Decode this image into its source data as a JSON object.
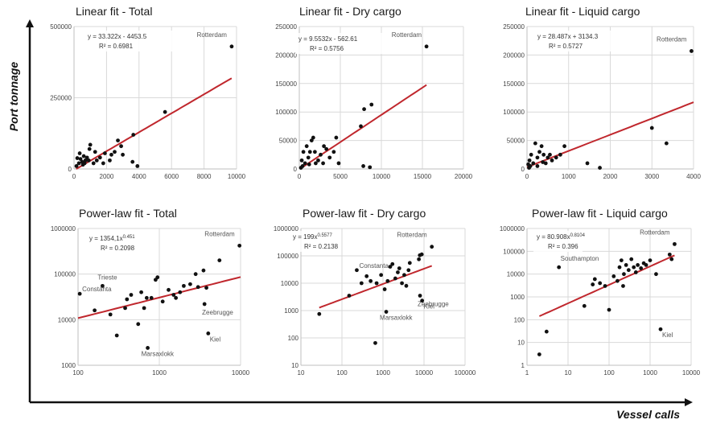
{
  "global": {
    "y_axis_title": "Port tonnage",
    "x_axis_title": "Vessel calls",
    "colors": {
      "trendline": "#c0272d",
      "points": "#111111",
      "grid": "#d9d9d9",
      "axis_arrow": "#111111"
    }
  },
  "chart_data": [
    {
      "type": "scatter",
      "title": "Linear fit - Total",
      "scale": "linear",
      "xlim": [
        0,
        10000
      ],
      "ylim": [
        0,
        500000
      ],
      "xticks": [
        0,
        2000,
        4000,
        6000,
        8000,
        10000
      ],
      "yticks": [
        0,
        250000,
        500000
      ],
      "xtick_labels": [
        "0",
        "2000",
        "4000",
        "6000",
        "8000",
        "10000"
      ],
      "ytick_labels": [
        "0",
        "250000",
        "500000"
      ],
      "equation": "y = 33.322x - 4453.5",
      "r_squared": "R² = 0.6981",
      "trendline": {
        "kind": "linear",
        "a": 33.322,
        "b": -4453.5,
        "x_range": [
          0,
          9700
        ]
      },
      "points": [
        {
          "x": 9700,
          "y": 430000,
          "label": "Rotterdam"
        },
        {
          "x": 5600,
          "y": 200000
        },
        {
          "x": 3650,
          "y": 120000
        },
        {
          "x": 3900,
          "y": 10000
        },
        {
          "x": 3600,
          "y": 25000
        },
        {
          "x": 2700,
          "y": 100000
        },
        {
          "x": 2900,
          "y": 80000
        },
        {
          "x": 3000,
          "y": 50000
        },
        {
          "x": 2500,
          "y": 60000
        },
        {
          "x": 2200,
          "y": 30000
        },
        {
          "x": 1900,
          "y": 55000
        },
        {
          "x": 1600,
          "y": 40000
        },
        {
          "x": 1400,
          "y": 30000
        },
        {
          "x": 1200,
          "y": 20000
        },
        {
          "x": 1000,
          "y": 85000
        },
        {
          "x": 950,
          "y": 70000
        },
        {
          "x": 900,
          "y": 30000
        },
        {
          "x": 800,
          "y": 40000
        },
        {
          "x": 700,
          "y": 30000
        },
        {
          "x": 650,
          "y": 20000
        },
        {
          "x": 600,
          "y": 45000
        },
        {
          "x": 550,
          "y": 15000
        },
        {
          "x": 500,
          "y": 25000
        },
        {
          "x": 400,
          "y": 35000
        },
        {
          "x": 350,
          "y": 55000
        },
        {
          "x": 300,
          "y": 20000
        },
        {
          "x": 200,
          "y": 38000
        },
        {
          "x": 150,
          "y": 10000
        },
        {
          "x": 1800,
          "y": 20000
        },
        {
          "x": 2300,
          "y": 50000
        },
        {
          "x": 1300,
          "y": 60000
        }
      ]
    },
    {
      "type": "scatter",
      "title": "Linear fit - Dry cargo",
      "scale": "linear",
      "xlim": [
        0,
        20000
      ],
      "ylim": [
        0,
        250000
      ],
      "xticks": [
        0,
        5000,
        10000,
        15000,
        20000
      ],
      "yticks": [
        0,
        50000,
        100000,
        150000,
        200000,
        250000
      ],
      "xtick_labels": [
        "0",
        "5000",
        "10000",
        "15000",
        "20000"
      ],
      "ytick_labels": [
        "0",
        "50000",
        "100000",
        "150000",
        "200000",
        "250000"
      ],
      "equation": "y = 9.5532x - 562.61",
      "r_squared": "R² = 0.5756",
      "trendline": {
        "kind": "linear",
        "a": 9.5532,
        "b": -562.61,
        "x_range": [
          0,
          15500
        ]
      },
      "points": [
        {
          "x": 15500,
          "y": 215000,
          "label": "Rotterdam"
        },
        {
          "x": 8800,
          "y": 113000
        },
        {
          "x": 7900,
          "y": 105000
        },
        {
          "x": 7500,
          "y": 75000
        },
        {
          "x": 7800,
          "y": 5000
        },
        {
          "x": 8600,
          "y": 3000
        },
        {
          "x": 4500,
          "y": 55000
        },
        {
          "x": 4200,
          "y": 30000
        },
        {
          "x": 3700,
          "y": 20000
        },
        {
          "x": 3300,
          "y": 35000
        },
        {
          "x": 2900,
          "y": 10000
        },
        {
          "x": 2600,
          "y": 25000
        },
        {
          "x": 2300,
          "y": 15000
        },
        {
          "x": 2000,
          "y": 10000
        },
        {
          "x": 1700,
          "y": 55000
        },
        {
          "x": 1500,
          "y": 50000
        },
        {
          "x": 1300,
          "y": 30000
        },
        {
          "x": 1100,
          "y": 20000
        },
        {
          "x": 900,
          "y": 40000
        },
        {
          "x": 700,
          "y": 10000
        },
        {
          "x": 500,
          "y": 30000
        },
        {
          "x": 400,
          "y": 5000
        },
        {
          "x": 300,
          "y": 15000
        },
        {
          "x": 200,
          "y": 2000
        },
        {
          "x": 1900,
          "y": 30000
        },
        {
          "x": 3000,
          "y": 40000
        },
        {
          "x": 1200,
          "y": 8000
        },
        {
          "x": 4800,
          "y": 10000
        }
      ]
    },
    {
      "type": "scatter",
      "title": "Linear fit - Liquid cargo",
      "scale": "linear",
      "xlim": [
        0,
        4000
      ],
      "ylim": [
        0,
        250000
      ],
      "xticks": [
        0,
        1000,
        2000,
        3000,
        4000
      ],
      "yticks": [
        0,
        50000,
        100000,
        150000,
        200000,
        250000
      ],
      "xtick_labels": [
        "0",
        "1000",
        "2000",
        "3000",
        "4000"
      ],
      "ytick_labels": [
        "0",
        "50000",
        "100000",
        "150000",
        "200000",
        "250000"
      ],
      "equation": "y = 28.487x + 3134.3",
      "r_squared": "R² = 0.5727",
      "trendline": {
        "kind": "linear",
        "a": 28.487,
        "b": 3134.3,
        "x_range": [
          0,
          4000
        ]
      },
      "points": [
        {
          "x": 3950,
          "y": 207000,
          "label": "Rotterdam"
        },
        {
          "x": 3000,
          "y": 72000
        },
        {
          "x": 3350,
          "y": 45000
        },
        {
          "x": 1750,
          "y": 2000
        },
        {
          "x": 1450,
          "y": 10000
        },
        {
          "x": 900,
          "y": 40000
        },
        {
          "x": 800,
          "y": 25000
        },
        {
          "x": 700,
          "y": 20000
        },
        {
          "x": 600,
          "y": 15000
        },
        {
          "x": 550,
          "y": 25000
        },
        {
          "x": 500,
          "y": 20000
        },
        {
          "x": 450,
          "y": 10000
        },
        {
          "x": 400,
          "y": 25000
        },
        {
          "x": 350,
          "y": 40000
        },
        {
          "x": 300,
          "y": 30000
        },
        {
          "x": 250,
          "y": 20000
        },
        {
          "x": 200,
          "y": 45000
        },
        {
          "x": 150,
          "y": 10000
        },
        {
          "x": 100,
          "y": 25000
        },
        {
          "x": 80,
          "y": 5000
        },
        {
          "x": 60,
          "y": 15000
        },
        {
          "x": 50,
          "y": 2000
        },
        {
          "x": 30,
          "y": 8000
        },
        {
          "x": 250,
          "y": 5000
        },
        {
          "x": 380,
          "y": 12000
        }
      ]
    },
    {
      "type": "scatter",
      "title": "Power-law fit - Total",
      "scale": "log",
      "xlim": [
        100,
        10000
      ],
      "ylim": [
        1000,
        1000000
      ],
      "xticks": [
        100,
        1000,
        10000
      ],
      "yticks": [
        1000,
        10000,
        100000,
        1000000
      ],
      "xtick_labels": [
        "100",
        "1000",
        "10000"
      ],
      "ytick_labels": [
        "1000",
        "10000",
        "100000",
        "1000000"
      ],
      "equation": "y = 1354,1x",
      "equation_exp": "0.451",
      "r_squared": "R² = 0.2098",
      "trendline": {
        "kind": "power",
        "a": 1354.1,
        "b": 0.451,
        "x_range": [
          100,
          10000
        ]
      },
      "points": [
        {
          "x": 9700,
          "y": 420000,
          "label": "Rotterdam"
        },
        {
          "x": 105,
          "y": 37000,
          "label": "Constanta"
        },
        {
          "x": 200,
          "y": 55000,
          "label": "Trieste"
        },
        {
          "x": 3600,
          "y": 22000,
          "label": "Zeebrugge"
        },
        {
          "x": 4000,
          "y": 5000,
          "label": "Kiel"
        },
        {
          "x": 720,
          "y": 2400,
          "label": "Marsaxlokk"
        },
        {
          "x": 5500,
          "y": 200000
        },
        {
          "x": 3500,
          "y": 120000
        },
        {
          "x": 2800,
          "y": 100000
        },
        {
          "x": 2400,
          "y": 60000
        },
        {
          "x": 2000,
          "y": 55000
        },
        {
          "x": 1800,
          "y": 40000
        },
        {
          "x": 1600,
          "y": 30000
        },
        {
          "x": 1300,
          "y": 45000
        },
        {
          "x": 1100,
          "y": 25000
        },
        {
          "x": 950,
          "y": 85000
        },
        {
          "x": 900,
          "y": 75000
        },
        {
          "x": 800,
          "y": 30000
        },
        {
          "x": 650,
          "y": 18000
        },
        {
          "x": 600,
          "y": 40000
        },
        {
          "x": 550,
          "y": 8000
        },
        {
          "x": 450,
          "y": 35000
        },
        {
          "x": 400,
          "y": 28000
        },
        {
          "x": 380,
          "y": 18000
        },
        {
          "x": 300,
          "y": 4500
        },
        {
          "x": 250,
          "y": 13000
        },
        {
          "x": 160,
          "y": 16000
        },
        {
          "x": 3000,
          "y": 52000
        },
        {
          "x": 3800,
          "y": 50000
        },
        {
          "x": 1500,
          "y": 35000
        },
        {
          "x": 700,
          "y": 30000
        }
      ]
    },
    {
      "type": "scatter",
      "title": "Power-law fit - Dry cargo",
      "scale": "log",
      "xlim": [
        10,
        100000
      ],
      "ylim": [
        10,
        1000000
      ],
      "xticks": [
        10,
        100,
        1000,
        10000,
        100000
      ],
      "yticks": [
        10,
        100,
        1000,
        10000,
        100000,
        1000000
      ],
      "xtick_labels": [
        "10",
        "100",
        "1000",
        "10000",
        "100000"
      ],
      "ytick_labels": [
        "10",
        "100",
        "1000",
        "10000",
        "100000",
        "1000000"
      ],
      "equation": "y = 199x",
      "equation_exp": "0.5577",
      "r_squared": "R² = 0.2138",
      "trendline": {
        "kind": "power",
        "a": 199,
        "b": 0.5577,
        "x_range": [
          28,
          15500
        ]
      },
      "points": [
        {
          "x": 15500,
          "y": 215000,
          "label": "Rotterdam"
        },
        {
          "x": 230,
          "y": 30000,
          "label": "Constanta"
        },
        {
          "x": 8000,
          "y": 3500,
          "label": "Zeebrugge"
        },
        {
          "x": 9000,
          "y": 2300,
          "label": "Kiel"
        },
        {
          "x": 1200,
          "y": 900,
          "label": "Marsaxlokk"
        },
        {
          "x": 28,
          "y": 750
        },
        {
          "x": 150,
          "y": 3500
        },
        {
          "x": 650,
          "y": 65
        },
        {
          "x": 8800,
          "y": 113000
        },
        {
          "x": 7900,
          "y": 105000
        },
        {
          "x": 7500,
          "y": 75000
        },
        {
          "x": 4500,
          "y": 55000
        },
        {
          "x": 4200,
          "y": 30000
        },
        {
          "x": 3300,
          "y": 20000
        },
        {
          "x": 2900,
          "y": 10000
        },
        {
          "x": 2300,
          "y": 25000
        },
        {
          "x": 2000,
          "y": 15000
        },
        {
          "x": 1700,
          "y": 50000
        },
        {
          "x": 1500,
          "y": 40000
        },
        {
          "x": 1300,
          "y": 12000
        },
        {
          "x": 1100,
          "y": 6000
        },
        {
          "x": 900,
          "y": 20000
        },
        {
          "x": 700,
          "y": 10000
        },
        {
          "x": 500,
          "y": 12000
        },
        {
          "x": 400,
          "y": 18000
        },
        {
          "x": 300,
          "y": 10000
        },
        {
          "x": 3700,
          "y": 8000
        },
        {
          "x": 2500,
          "y": 35000
        }
      ]
    },
    {
      "type": "scatter",
      "title": "Power-law fit - Liquid cargo",
      "scale": "log",
      "xlim": [
        1,
        10000
      ],
      "ylim": [
        1,
        1000000
      ],
      "xticks": [
        1,
        10,
        100,
        1000,
        10000
      ],
      "yticks": [
        1,
        10,
        100,
        1000,
        10000,
        100000,
        1000000
      ],
      "xtick_labels": [
        "1",
        "10",
        "100",
        "1000",
        "10000"
      ],
      "ytick_labels": [
        "1",
        "10",
        "100",
        "1000",
        "10000",
        "100000",
        "1000000"
      ],
      "equation": "y = 80.908x",
      "equation_exp": "0.8104",
      "r_squared": "R² = 0.396",
      "trendline": {
        "kind": "power",
        "a": 80.908,
        "b": 0.8104,
        "x_range": [
          2,
          3950
        ]
      },
      "points": [
        {
          "x": 3950,
          "y": 207000,
          "label": "Rotterdam"
        },
        {
          "x": 6,
          "y": 20000,
          "label": "Southampton"
        },
        {
          "x": 1800,
          "y": 38,
          "label": "Kiel"
        },
        {
          "x": 2,
          "y": 3
        },
        {
          "x": 3,
          "y": 30
        },
        {
          "x": 25,
          "y": 400
        },
        {
          "x": 40,
          "y": 3500
        },
        {
          "x": 45,
          "y": 6000
        },
        {
          "x": 60,
          "y": 4000
        },
        {
          "x": 80,
          "y": 3000
        },
        {
          "x": 100,
          "y": 270
        },
        {
          "x": 130,
          "y": 8000
        },
        {
          "x": 160,
          "y": 5000
        },
        {
          "x": 180,
          "y": 20000
        },
        {
          "x": 200,
          "y": 40000
        },
        {
          "x": 230,
          "y": 10000
        },
        {
          "x": 260,
          "y": 25000
        },
        {
          "x": 300,
          "y": 15000
        },
        {
          "x": 350,
          "y": 45000
        },
        {
          "x": 400,
          "y": 20000
        },
        {
          "x": 450,
          "y": 12000
        },
        {
          "x": 500,
          "y": 25000
        },
        {
          "x": 600,
          "y": 18000
        },
        {
          "x": 700,
          "y": 30000
        },
        {
          "x": 800,
          "y": 25000
        },
        {
          "x": 1000,
          "y": 40000
        },
        {
          "x": 1400,
          "y": 10000
        },
        {
          "x": 3000,
          "y": 72000
        },
        {
          "x": 3350,
          "y": 45000
        },
        {
          "x": 220,
          "y": 3000
        }
      ]
    }
  ]
}
